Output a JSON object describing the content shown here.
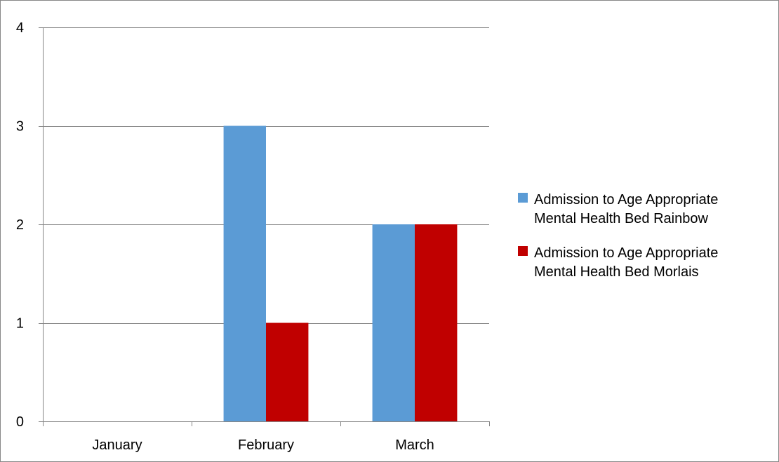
{
  "chart_data": {
    "type": "bar",
    "categories": [
      "January",
      "February",
      "March"
    ],
    "series": [
      {
        "name": "Admission to Age Appropriate Mental Health Bed Rainbow",
        "name_lines": [
          "Admission to Age Appropriate",
          "Mental Health Bed Rainbow"
        ],
        "color": "#5B9BD5",
        "values": [
          0,
          3,
          2
        ]
      },
      {
        "name": "Admission to Age Appropriate Mental Health Bed Morlais",
        "name_lines": [
          "Admission to Age Appropriate",
          "Mental Health Bed Morlais"
        ],
        "color": "#C00000",
        "values": [
          0,
          1,
          2
        ]
      }
    ],
    "title": "",
    "xlabel": "",
    "ylabel": "",
    "ylim": [
      0,
      4
    ],
    "yticks": [
      "0",
      "1",
      "2",
      "3",
      "4"
    ],
    "grid": true,
    "legend_position": "right"
  }
}
